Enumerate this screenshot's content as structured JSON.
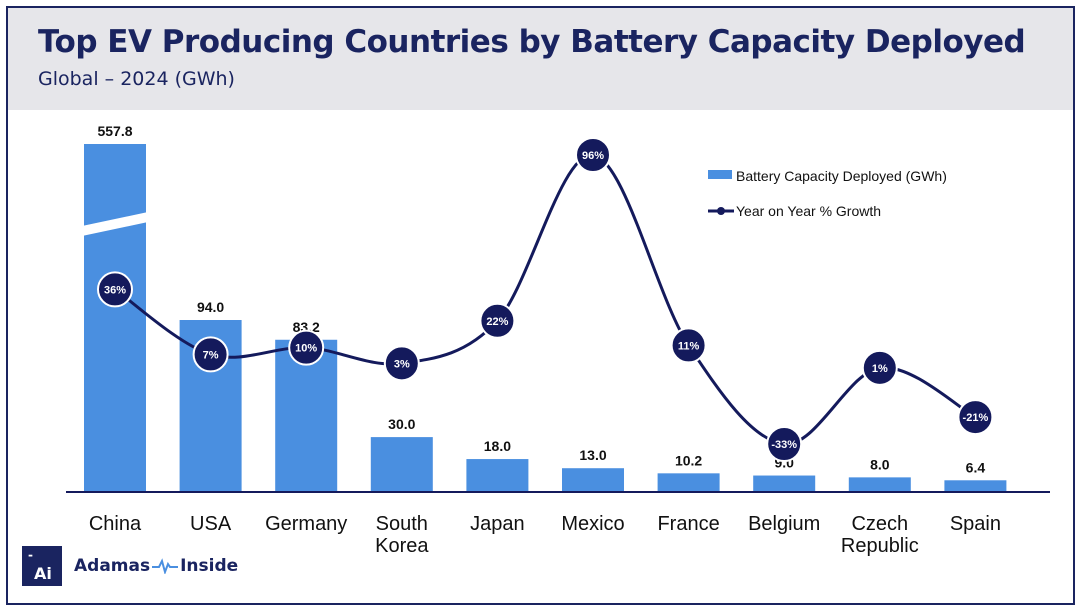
{
  "header": {
    "title": "Top EV Producing Countries by Battery Capacity Deployed",
    "subtitle": "Global – 2024 (GWh)"
  },
  "brand": {
    "mark": "Ai",
    "name_left": "Adamas",
    "name_right": "Inside",
    "icon": "pulse-icon"
  },
  "colors": {
    "bar": "#4a8fe0",
    "line": "#141a5c",
    "title": "#1a2460",
    "header_bg": "#e6e6ea"
  },
  "chart_data": {
    "type": "bar",
    "categories": [
      "China",
      "USA",
      "Germany",
      "South Korea",
      "Japan",
      "Mexico",
      "France",
      "Belgium",
      "Czech Republic",
      "Spain"
    ],
    "series": [
      {
        "name": "Battery Capacity Deployed (GWh)",
        "type": "bar",
        "values": [
          557.8,
          94.0,
          83.2,
          30.0,
          18.0,
          13.0,
          10.2,
          9.0,
          8.0,
          6.4
        ],
        "labels": [
          "557.8",
          "94.0",
          "83.2",
          "30.0",
          "18.0",
          "13.0",
          "10.2",
          "9.0",
          "8.0",
          "6.4"
        ]
      },
      {
        "name": "Year on Year % Growth",
        "type": "line",
        "values": [
          36,
          7,
          10,
          3,
          22,
          96,
          11,
          -33,
          1,
          -21
        ],
        "labels": [
          "36%",
          "7%",
          "10%",
          "3%",
          "22%",
          "96%",
          "11%",
          "-33%",
          "1%",
          "-21%"
        ]
      }
    ],
    "axis_break": "China bar truncated",
    "legend": "top-right"
  }
}
